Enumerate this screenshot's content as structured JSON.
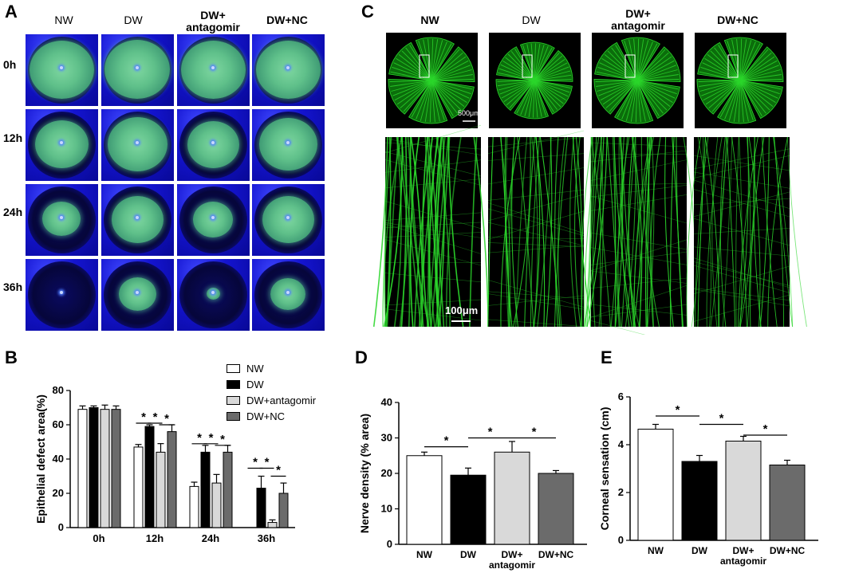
{
  "panel_a": {
    "letter": "A",
    "columns": [
      {
        "line1": "NW",
        "line2": ""
      },
      {
        "line1": "DW",
        "line2": ""
      },
      {
        "line1": "DW+",
        "line2": "antagomir"
      },
      {
        "line1": "DW+NC",
        "line2": ""
      }
    ],
    "rows": [
      "0h",
      "12h",
      "24h",
      "36h"
    ],
    "stain_fraction": [
      [
        0.69,
        0.7,
        0.69,
        0.69
      ],
      [
        0.47,
        0.59,
        0.44,
        0.56
      ],
      [
        0.24,
        0.44,
        0.26,
        0.44
      ],
      [
        0.0,
        0.23,
        0.03,
        0.2
      ]
    ]
  },
  "panel_c": {
    "letter": "C",
    "columns": [
      {
        "line1": "NW",
        "line2": ""
      },
      {
        "line1": "DW",
        "line2": ""
      },
      {
        "line1": "DW+",
        "line2": "antagomir"
      },
      {
        "line1": "DW+NC",
        "line2": ""
      }
    ],
    "scale_top": "500μm",
    "scale_bottom": "100μm",
    "nerve_color": "#2bd62b"
  },
  "colors": {
    "nw": "#ffffff",
    "dw": "#000000",
    "antagomir": "#d9d9d9",
    "nc": "#6b6b6b"
  },
  "chart_data": [
    {
      "panel": "B",
      "type": "bar",
      "ylabel": "Epithelial defect area(%)",
      "ylim": [
        0,
        80
      ],
      "yticks": [
        0,
        20,
        40,
        60,
        80
      ],
      "categories": [
        "0h",
        "12h",
        "24h",
        "36h"
      ],
      "legend": [
        "NW",
        "DW",
        "DW+antagomir",
        "DW+NC"
      ],
      "legend_position": "top-right",
      "series": [
        {
          "name": "NW",
          "values": [
            69,
            47,
            24,
            0
          ],
          "errors": [
            2,
            1.5,
            2.5,
            0
          ]
        },
        {
          "name": "DW",
          "values": [
            70,
            59,
            44,
            23
          ],
          "errors": [
            1,
            1,
            4,
            7
          ]
        },
        {
          "name": "DW+antagomir",
          "values": [
            69,
            44,
            26,
            3
          ],
          "errors": [
            2.5,
            5,
            5,
            1.5
          ]
        },
        {
          "name": "DW+NC",
          "values": [
            69,
            56,
            44,
            20
          ],
          "errors": [
            2,
            4,
            4,
            6
          ]
        }
      ],
      "significance_marker": "*"
    },
    {
      "panel": "D",
      "type": "bar",
      "ylabel": "Nerve density (% area)",
      "ylim": [
        0,
        40
      ],
      "yticks": [
        0,
        10,
        20,
        30,
        40
      ],
      "categories": [
        "NW",
        "DW",
        "DW+antagomir",
        "DW+NC"
      ],
      "tick_labels": [
        {
          "line1": "NW",
          "line2": ""
        },
        {
          "line1": "DW",
          "line2": ""
        },
        {
          "line1": "DW+",
          "line2": "antagomir"
        },
        {
          "line1": "DW+NC",
          "line2": ""
        }
      ],
      "values": [
        25,
        19.5,
        26,
        20
      ],
      "errors": [
        1,
        2,
        3,
        0.8
      ],
      "significance_marker": "*"
    },
    {
      "panel": "E",
      "type": "bar",
      "ylabel": "Corneal sensation (cm)",
      "ylim": [
        0,
        6
      ],
      "yticks": [
        0,
        2,
        4,
        6
      ],
      "categories": [
        "NW",
        "DW",
        "DW+antagomir",
        "DW+NC"
      ],
      "tick_labels": [
        {
          "line1": "NW",
          "line2": ""
        },
        {
          "line1": "DW",
          "line2": ""
        },
        {
          "line1": "DW+",
          "line2": "antagomir"
        },
        {
          "line1": "DW+NC",
          "line2": ""
        }
      ],
      "values": [
        4.65,
        3.3,
        4.15,
        3.15
      ],
      "errors": [
        0.2,
        0.25,
        0.2,
        0.2
      ],
      "significance_marker": "*"
    }
  ]
}
